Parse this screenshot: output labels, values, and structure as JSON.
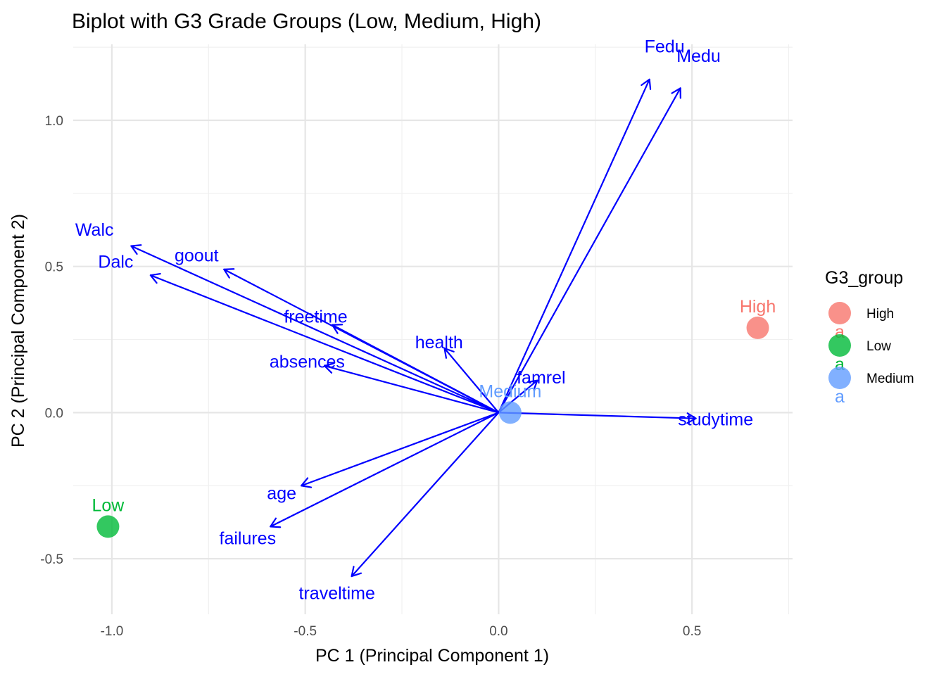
{
  "chart_data": {
    "type": "scatter",
    "title": "Biplot with G3 Grade Groups (Low, Medium, High)",
    "xlabel": "PC 1 (Principal Component 1)",
    "ylabel": "PC 2 (Principal Component 2)",
    "xlim": [
      -1.1,
      0.76
    ],
    "ylim": [
      -0.69,
      1.26
    ],
    "x_major_ticks": [
      -1.0,
      -0.5,
      0.0,
      0.5
    ],
    "x_tick_labels": [
      "-1.0",
      "-0.5",
      "0.0",
      "0.5"
    ],
    "x_minor_ticks": [
      -0.75,
      -0.25,
      0.25,
      0.75
    ],
    "y_major_ticks": [
      -0.5,
      0.0,
      0.5,
      1.0
    ],
    "y_tick_labels": [
      "-0.5",
      "0.0",
      "0.5",
      "1.0"
    ],
    "y_minor_ticks": [
      -0.25,
      0.25,
      0.75,
      1.25
    ],
    "grid": true,
    "legend": {
      "title": "G3_group",
      "placement": "right",
      "entries": [
        {
          "label": "High",
          "color": "#f8766d"
        },
        {
          "label": "Low",
          "color": "#00ba38"
        },
        {
          "label": "Medium",
          "color": "#619cff"
        }
      ],
      "key_text": "a"
    },
    "group_points": [
      {
        "name": "High",
        "x": 0.67,
        "y": 0.29,
        "color": "#f8766d"
      },
      {
        "name": "Low",
        "x": -1.01,
        "y": -0.39,
        "color": "#00ba38"
      },
      {
        "name": "Medium",
        "x": 0.03,
        "y": 0.0,
        "color": "#619cff"
      }
    ],
    "arrow_color": "#0000ff",
    "loadings": [
      {
        "name": "Fedu",
        "x": 0.39,
        "y": 1.14
      },
      {
        "name": "Medu",
        "x": 0.47,
        "y": 1.11
      },
      {
        "name": "Walc",
        "x": -0.95,
        "y": 0.57
      },
      {
        "name": "goout",
        "x": -0.71,
        "y": 0.49
      },
      {
        "name": "Dalc",
        "x": -0.9,
        "y": 0.47
      },
      {
        "name": "freetime",
        "x": -0.43,
        "y": 0.3
      },
      {
        "name": "health",
        "x": -0.14,
        "y": 0.22
      },
      {
        "name": "absences",
        "x": -0.45,
        "y": 0.16
      },
      {
        "name": "famrel",
        "x": 0.1,
        "y": 0.11
      },
      {
        "name": "studytime",
        "x": 0.51,
        "y": -0.02
      },
      {
        "name": "age",
        "x": -0.51,
        "y": -0.25
      },
      {
        "name": "failures",
        "x": -0.59,
        "y": -0.39
      },
      {
        "name": "traveltime",
        "x": -0.38,
        "y": -0.56
      }
    ]
  }
}
